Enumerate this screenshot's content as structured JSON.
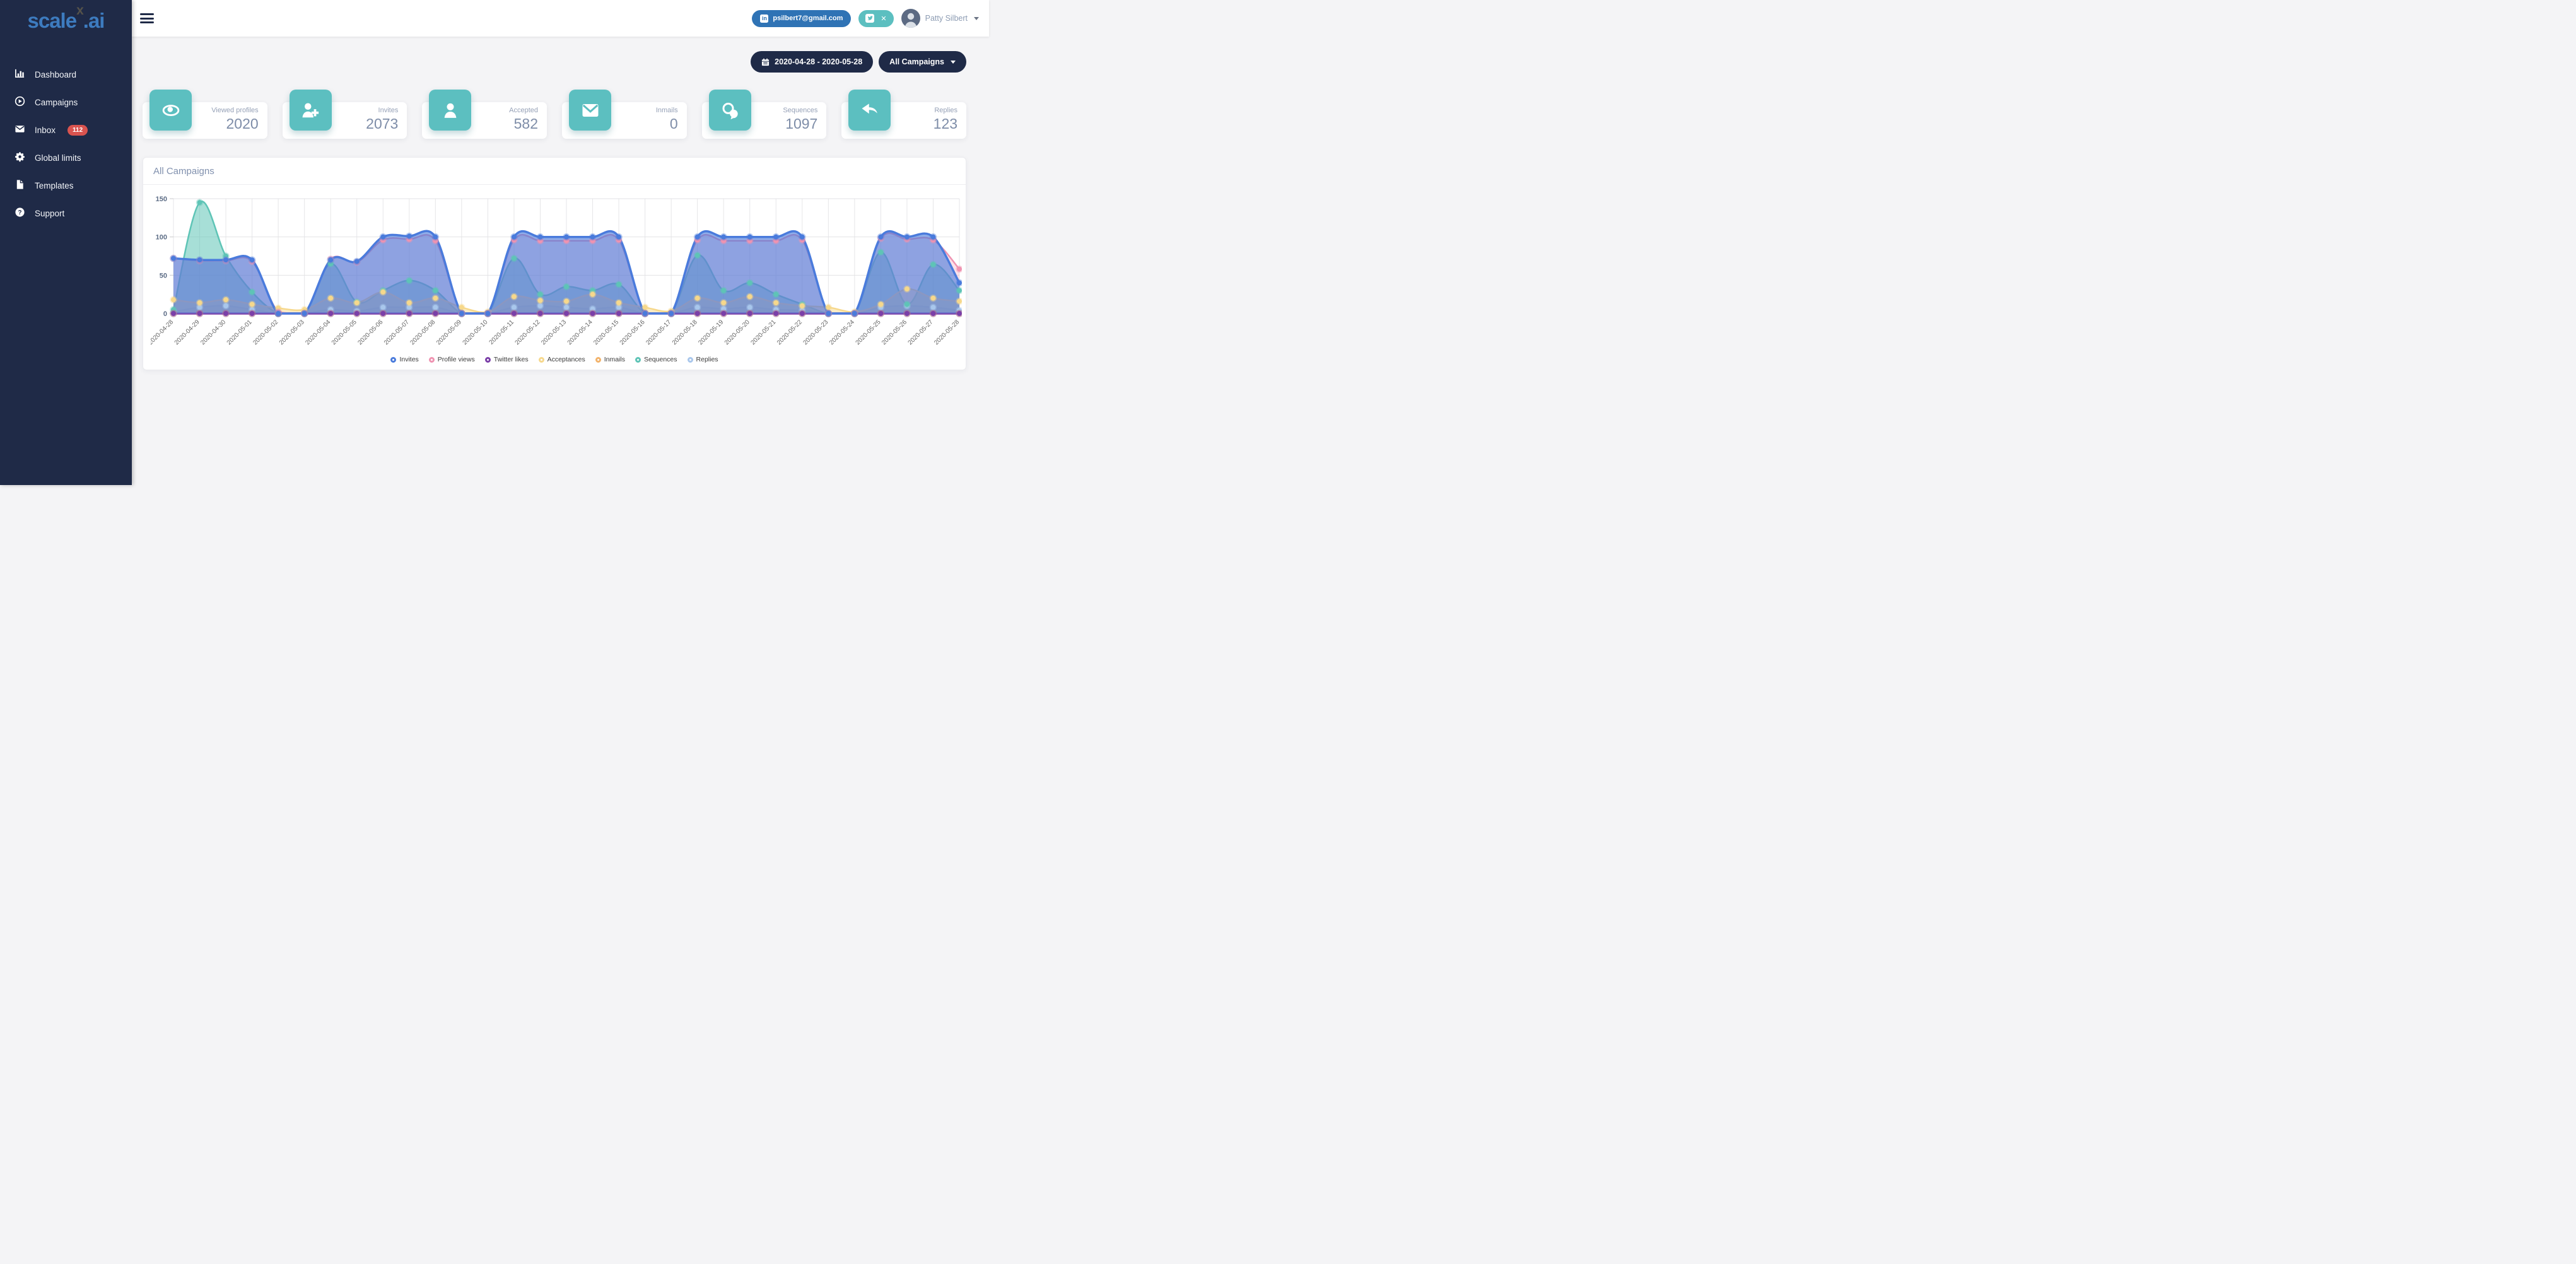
{
  "colors": {
    "sidebar_bg": "#1f2a47",
    "logo_blue": "#3d7bbf",
    "teal": "#5cbfc0",
    "badge_red": "#d9534f",
    "email_btn_blue": "#2f73b5",
    "pill_navy": "#1f2a47"
  },
  "sidebar": {
    "logo": {
      "part1": "scale",
      "part2": "x",
      "part3": ".ai"
    },
    "items": [
      {
        "label": "Dashboard",
        "icon": "chart-bar-icon"
      },
      {
        "label": "Campaigns",
        "icon": "play-circle-icon"
      },
      {
        "label": "Inbox",
        "icon": "envelope-icon",
        "badge": "112"
      },
      {
        "label": "Global limits",
        "icon": "gear-icon"
      },
      {
        "label": "Templates",
        "icon": "file-icon"
      },
      {
        "label": "Support",
        "icon": "question-circle-icon"
      }
    ]
  },
  "header": {
    "email_button": "psilbert7@gmail.com",
    "user_name": "Patty Silbert"
  },
  "controls": {
    "date_range": "2020-04-28 - 2020-05-28",
    "campaign_filter": "All Campaigns"
  },
  "stats": [
    {
      "label": "Viewed profiles",
      "value": "2020",
      "icon": "eye-icon"
    },
    {
      "label": "Invites",
      "value": "2073",
      "icon": "user-plus-icon"
    },
    {
      "label": "Accepted",
      "value": "582",
      "icon": "user-icon"
    },
    {
      "label": "Inmails",
      "value": "0",
      "icon": "envelope-icon"
    },
    {
      "label": "Sequences",
      "value": "1097",
      "icon": "comments-icon"
    },
    {
      "label": "Replies",
      "value": "123",
      "icon": "reply-icon"
    }
  ],
  "chart_card": {
    "title": "All Campaigns"
  },
  "chart_data": {
    "type": "area",
    "title": "All Campaigns",
    "xlabel": "",
    "ylabel": "",
    "ylim": [
      0,
      150
    ],
    "yticks": [
      0,
      50,
      100,
      150
    ],
    "grid": true,
    "legend_position": "bottom",
    "x": [
      "2020-04-28",
      "2020-04-29",
      "2020-04-30",
      "2020-05-01",
      "2020-05-02",
      "2020-05-03",
      "2020-05-04",
      "2020-05-05",
      "2020-05-06",
      "2020-05-07",
      "2020-05-08",
      "2020-05-09",
      "2020-05-10",
      "2020-05-11",
      "2020-05-12",
      "2020-05-13",
      "2020-05-14",
      "2020-05-15",
      "2020-05-16",
      "2020-05-17",
      "2020-05-18",
      "2020-05-19",
      "2020-05-20",
      "2020-05-21",
      "2020-05-22",
      "2020-05-23",
      "2020-05-24",
      "2020-05-25",
      "2020-05-26",
      "2020-05-27",
      "2020-05-28"
    ],
    "series": [
      {
        "name": "Invites",
        "color": "#4a7bdc",
        "fill_opacity": 0.62,
        "line_width": 3.5,
        "values": [
          72,
          70,
          70,
          70,
          0,
          0,
          70,
          68,
          100,
          101,
          100,
          0,
          0,
          100,
          100,
          100,
          100,
          100,
          0,
          0,
          100,
          100,
          100,
          100,
          100,
          0,
          0,
          100,
          100,
          100,
          40
        ]
      },
      {
        "name": "Profile views",
        "color": "#ef93b1",
        "fill_opacity": 0.28,
        "line_width": 2.5,
        "values": [
          72,
          69,
          69,
          68,
          2,
          0,
          71,
          67,
          96,
          97,
          95,
          0,
          0,
          96,
          95,
          95,
          95,
          96,
          0,
          0,
          96,
          95,
          95,
          95,
          96,
          0,
          0,
          98,
          97,
          96,
          58
        ]
      },
      {
        "name": "Twitter likes",
        "color": "#7b3fa8",
        "fill_opacity": 0.0,
        "line_width": 3.5,
        "values": [
          0,
          0,
          0,
          0,
          0,
          0,
          0,
          0,
          0,
          0,
          0,
          0,
          0,
          0,
          0,
          0,
          0,
          0,
          0,
          0,
          0,
          0,
          0,
          0,
          0,
          0,
          0,
          0,
          0,
          0,
          0
        ]
      },
      {
        "name": "Acceptances",
        "color": "#f6d88c",
        "fill_opacity": 0.5,
        "line_width": 2.5,
        "values": [
          18,
          14,
          18,
          12,
          7,
          5,
          20,
          14,
          28,
          14,
          20,
          8,
          2,
          22,
          17,
          16,
          25,
          14,
          8,
          3,
          20,
          14,
          22,
          14,
          10,
          8,
          2,
          12,
          32,
          20,
          16
        ]
      },
      {
        "name": "Inmails",
        "color": "#f2b36b",
        "fill_opacity": 0.0,
        "line_width": 2.5,
        "values": [
          0,
          0,
          0,
          0,
          0,
          0,
          0,
          0,
          0,
          0,
          0,
          0,
          0,
          0,
          0,
          0,
          0,
          0,
          0,
          0,
          0,
          0,
          0,
          0,
          0,
          0,
          0,
          0,
          0,
          0,
          0
        ]
      },
      {
        "name": "Sequences",
        "color": "#5ec4b6",
        "fill_opacity": 0.55,
        "line_width": 2.5,
        "values": [
          5,
          145,
          75,
          28,
          0,
          0,
          65,
          15,
          30,
          43,
          30,
          0,
          0,
          72,
          25,
          35,
          30,
          38,
          0,
          0,
          76,
          30,
          40,
          25,
          12,
          0,
          0,
          80,
          12,
          64,
          30
        ]
      },
      {
        "name": "Replies",
        "color": "#a9c7ec",
        "fill_opacity": 0.5,
        "line_width": 2.5,
        "values": [
          2,
          8,
          10,
          5,
          0,
          0,
          5,
          3,
          8,
          8,
          8,
          0,
          0,
          8,
          10,
          8,
          6,
          8,
          0,
          0,
          8,
          6,
          8,
          5,
          4,
          0,
          0,
          8,
          10,
          8,
          4
        ]
      }
    ]
  }
}
